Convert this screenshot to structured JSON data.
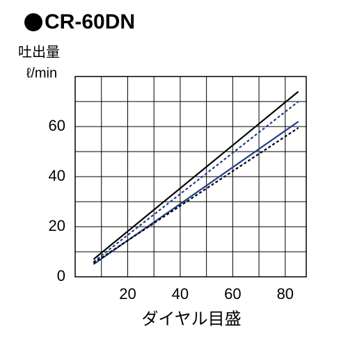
{
  "chart_data": {
    "type": "line",
    "title": "CR-60DN",
    "ylabel": [
      "吐出量",
      "ℓ/min"
    ],
    "xlabel": "ダイヤル目盛",
    "x": [
      7,
      85
    ],
    "series": [
      {
        "color": "#000000",
        "dash": false,
        "values": [
          7,
          74
        ]
      },
      {
        "color": "#1f3f86",
        "dash": true,
        "values": [
          6,
          70
        ]
      },
      {
        "color": "#1f3f86",
        "dash": false,
        "values": [
          5,
          62
        ]
      },
      {
        "color": "#000000",
        "dash": true,
        "values": [
          5.5,
          59.5
        ]
      }
    ],
    "xlim": [
      0,
      88
    ],
    "ylim": [
      0,
      80
    ],
    "xticks": [
      20,
      40,
      60,
      80
    ],
    "yticks": [
      0,
      20,
      40,
      60
    ],
    "xgrid": [
      10,
      20,
      30,
      40,
      50,
      60,
      70,
      80
    ],
    "ygrid": [
      10,
      20,
      30,
      40,
      50,
      60,
      70
    ],
    "grid": true
  }
}
